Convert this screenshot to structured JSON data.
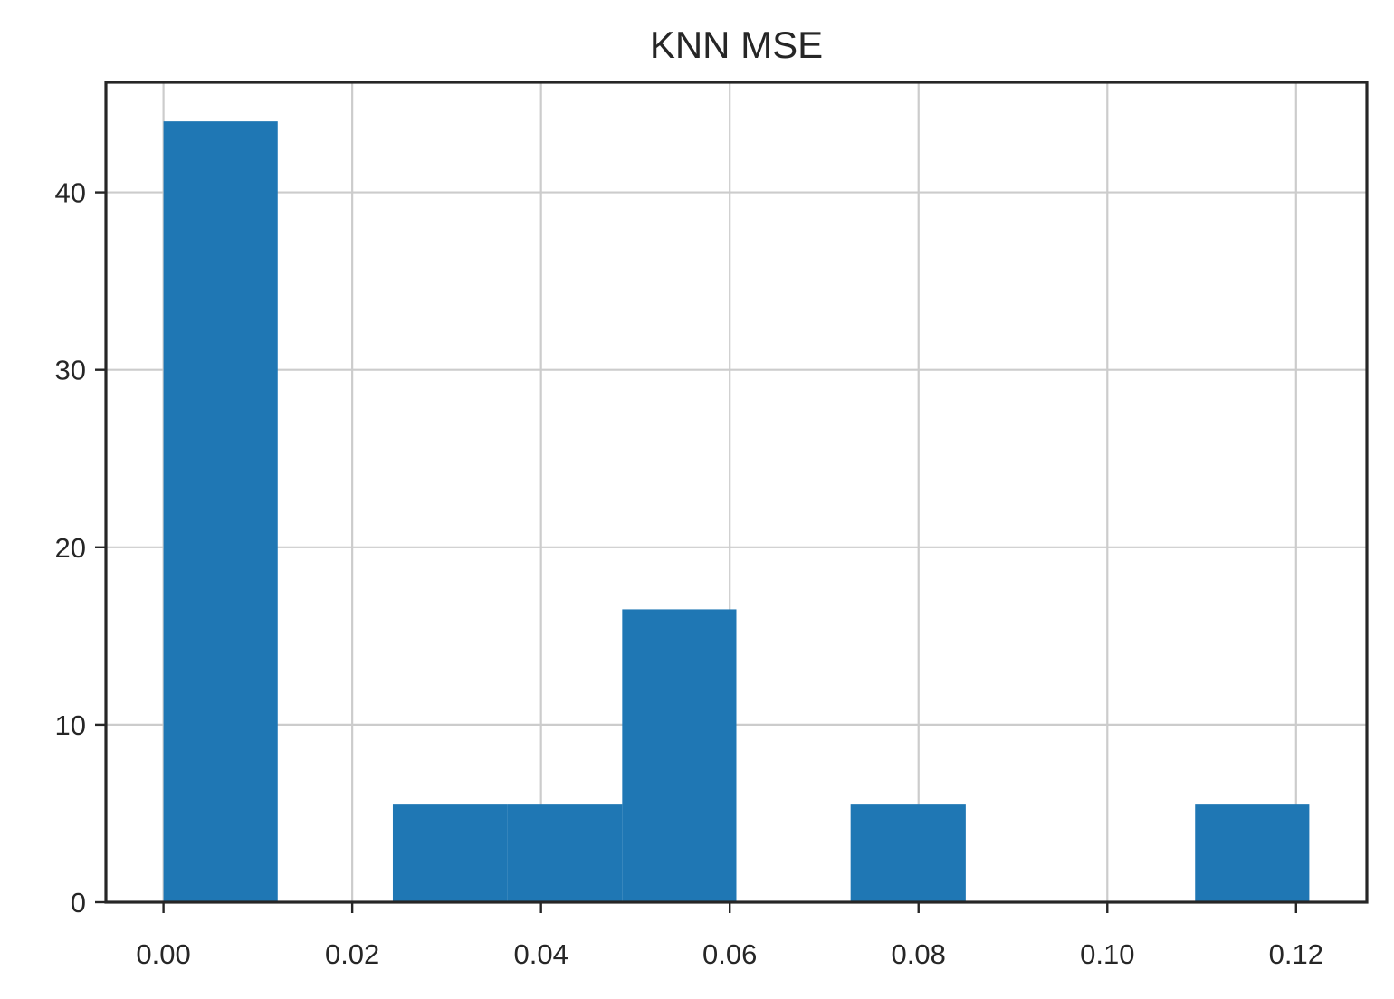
{
  "chart_data": {
    "type": "bar",
    "subtype": "histogram",
    "title": "KNN MSE",
    "xlabel": "",
    "ylabel": "",
    "bins": [
      {
        "start": 0.0,
        "end": 0.0121,
        "value": 44.0
      },
      {
        "start": 0.0121,
        "end": 0.0243,
        "value": 0
      },
      {
        "start": 0.0243,
        "end": 0.0364,
        "value": 5.5
      },
      {
        "start": 0.0364,
        "end": 0.0486,
        "value": 5.5
      },
      {
        "start": 0.0486,
        "end": 0.0607,
        "value": 16.5
      },
      {
        "start": 0.0607,
        "end": 0.0728,
        "value": 0
      },
      {
        "start": 0.0728,
        "end": 0.085,
        "value": 5.5
      },
      {
        "start": 0.085,
        "end": 0.0971,
        "value": 0
      },
      {
        "start": 0.0971,
        "end": 0.1093,
        "value": 0
      },
      {
        "start": 0.1093,
        "end": 0.1214,
        "value": 5.5
      }
    ],
    "xlim": [
      -0.0061,
      0.1275
    ],
    "ylim": [
      0,
      46.2
    ],
    "xticks": [
      0.0,
      0.02,
      0.04,
      0.06,
      0.08,
      0.1,
      0.12
    ],
    "xtick_labels": [
      "0.00",
      "0.02",
      "0.04",
      "0.06",
      "0.08",
      "0.10",
      "0.12"
    ],
    "yticks": [
      0,
      10,
      20,
      30,
      40
    ],
    "ytick_labels": [
      "0",
      "10",
      "20",
      "30",
      "40"
    ],
    "grid": true,
    "legend": "none",
    "bar_color": "#1f77b4",
    "grid_color": "#cccccc",
    "axis_color": "#262626"
  }
}
